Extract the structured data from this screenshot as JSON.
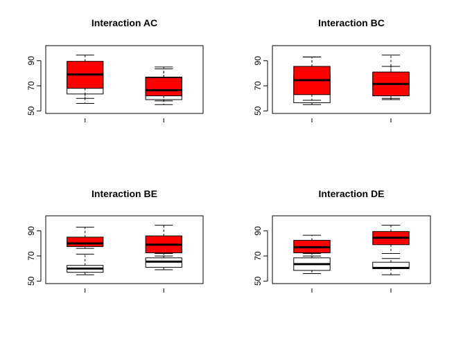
{
  "chart_data": [
    {
      "type": "boxplot",
      "title": "Interaction AC",
      "ylim": [
        48,
        102
      ],
      "yticks": [
        50,
        70,
        90
      ],
      "groups": 2,
      "boxes": [
        {
          "group": 1,
          "color": "#ffffff",
          "whisker_low": 56,
          "q1": 63.5,
          "median": 71,
          "q3": 80,
          "whisker_high": 88
        },
        {
          "group": 1,
          "color": "#ff0000",
          "whisker_low": 60,
          "q1": 68,
          "median": 79,
          "q3": 89.5,
          "whisker_high": 94.5
        },
        {
          "group": 2,
          "color": "#ffffff",
          "whisker_low": 55,
          "q1": 59,
          "median": 70,
          "q3": 77,
          "whisker_high": 85
        },
        {
          "group": 2,
          "color": "#ff0000",
          "whisker_low": 58,
          "q1": 62,
          "median": 66.5,
          "q3": 76.5,
          "whisker_high": 83.5
        }
      ]
    },
    {
      "type": "boxplot",
      "title": "Interaction BC",
      "ylim": [
        48,
        102
      ],
      "yticks": [
        50,
        70,
        90
      ],
      "groups": 2,
      "boxes": [
        {
          "group": 1,
          "color": "#ffffff",
          "whisker_low": 55,
          "q1": 56.5,
          "median": 68,
          "q3": 78.5,
          "whisker_high": 93
        },
        {
          "group": 1,
          "color": "#ff0000",
          "whisker_low": 58.5,
          "q1": 63,
          "median": 74.5,
          "q3": 85.5,
          "whisker_high": 93
        },
        {
          "group": 2,
          "color": "#ffffff",
          "whisker_low": 59,
          "q1": 67,
          "median": 70,
          "q3": 79,
          "whisker_high": 94.5
        },
        {
          "group": 2,
          "color": "#ff0000",
          "whisker_low": 60,
          "q1": 62,
          "median": 71.5,
          "q3": 81,
          "whisker_high": 85.5
        }
      ]
    },
    {
      "type": "boxplot",
      "title": "Interaction BE",
      "ylim": [
        48,
        102
      ],
      "yticks": [
        50,
        70,
        90
      ],
      "groups": 2,
      "boxes": [
        {
          "group": 1,
          "color": "#ffffff",
          "whisker_low": 55,
          "q1": 57,
          "median": 60,
          "q3": 62.5,
          "whisker_high": 71.5
        },
        {
          "group": 1,
          "color": "#ff0000",
          "whisker_low": 76,
          "q1": 77.5,
          "median": 80,
          "q3": 85,
          "whisker_high": 93
        },
        {
          "group": 2,
          "color": "#ffffff",
          "whisker_low": 59,
          "q1": 61,
          "median": 65.5,
          "q3": 68.5,
          "whisker_high": 72
        },
        {
          "group": 2,
          "color": "#ff0000",
          "whisker_low": 70,
          "q1": 72.5,
          "median": 79,
          "q3": 86,
          "whisker_high": 94.5
        }
      ]
    },
    {
      "type": "boxplot",
      "title": "Interaction DE",
      "ylim": [
        48,
        102
      ],
      "yticks": [
        50,
        70,
        90
      ],
      "groups": 2,
      "boxes": [
        {
          "group": 1,
          "color": "#ffffff",
          "whisker_low": 56,
          "q1": 58.5,
          "median": 63.5,
          "q3": 68.5,
          "whisker_high": 72
        },
        {
          "group": 1,
          "color": "#ff0000",
          "whisker_low": 70,
          "q1": 72.5,
          "median": 77,
          "q3": 82.5,
          "whisker_high": 86.5
        },
        {
          "group": 2,
          "color": "#ffffff",
          "whisker_low": 55,
          "q1": 60,
          "median": 60.5,
          "q3": 65,
          "whisker_high": 68
        },
        {
          "group": 2,
          "color": "#ff0000",
          "whisker_low": 72,
          "q1": 79,
          "median": 84.5,
          "q3": 89.5,
          "whisker_high": 94.5
        }
      ]
    }
  ]
}
